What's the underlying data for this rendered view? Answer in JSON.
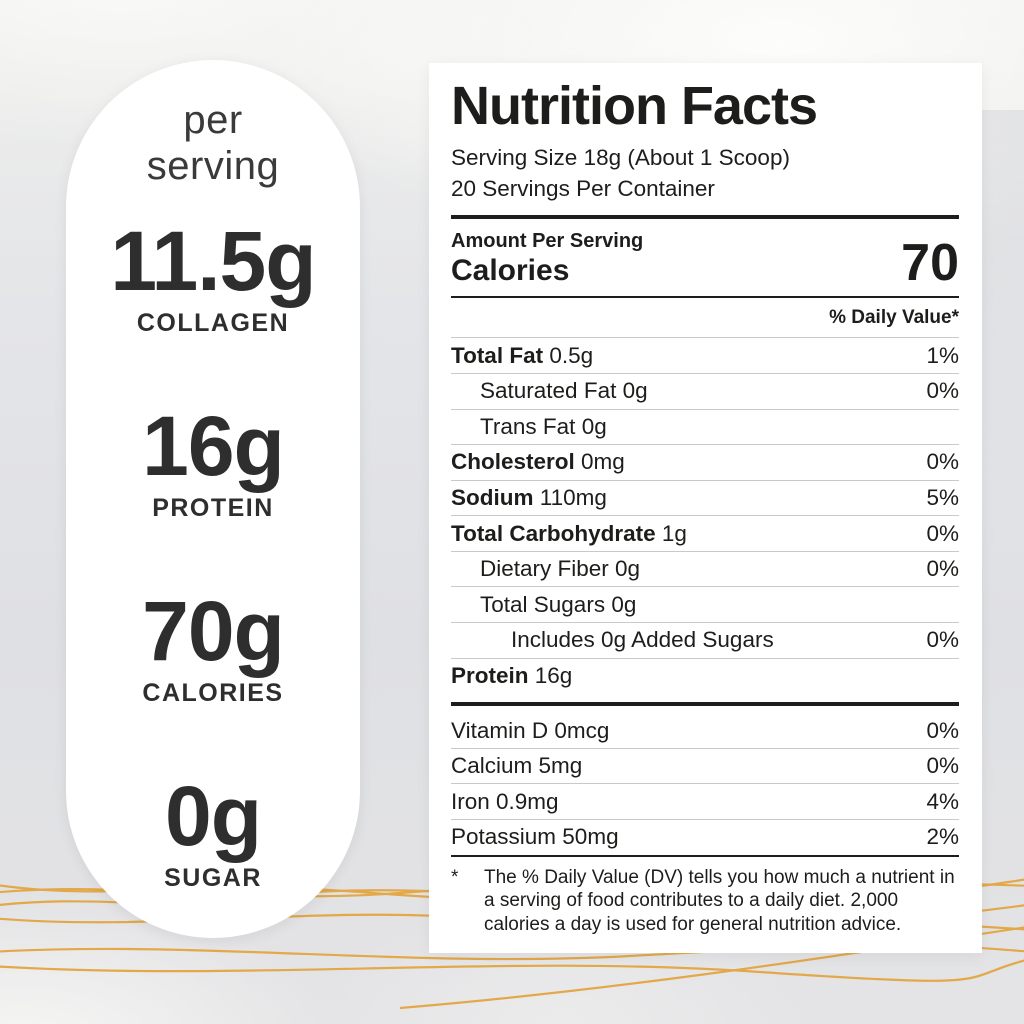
{
  "colors": {
    "accent_gold": "#E2A33C",
    "panel_white": "#FFFFFF",
    "text_dark": "#1D1D1B",
    "background_gray": "#E3E4E6",
    "separator_gray": "#C9C9C9"
  },
  "per_serving_panel": {
    "heading": "per serving",
    "stats": [
      {
        "value": "11.5g",
        "label": "COLLAGEN"
      },
      {
        "value": "16g",
        "label": "PROTEIN"
      },
      {
        "value": "70g",
        "label": "CALORIES"
      },
      {
        "value": "0g",
        "label": "SUGAR"
      }
    ]
  },
  "nutrition_facts": {
    "title": "Nutrition Facts",
    "serving_size": "Serving Size 18g (About 1 Scoop)",
    "servings_per_container": "20 Servings Per Container",
    "amount_per_serving_label": "Amount Per Serving",
    "calories_label": "Calories",
    "calories_value": "70",
    "daily_value_header": "% Daily Value*",
    "nutrient_rows": [
      {
        "name": "Total Fat",
        "amount": "0.5g",
        "dv": "1%",
        "bold": true,
        "indent": 0
      },
      {
        "name": "Saturated Fat",
        "amount": "0g",
        "dv": "0%",
        "bold": false,
        "indent": 1
      },
      {
        "name": "Trans Fat",
        "amount": "0g",
        "dv": "",
        "bold": false,
        "indent": 1
      },
      {
        "name": "Cholesterol",
        "amount": "0mg",
        "dv": "0%",
        "bold": true,
        "indent": 0
      },
      {
        "name": "Sodium",
        "amount": "110mg",
        "dv": "5%",
        "bold": true,
        "indent": 0
      },
      {
        "name": "Total Carbohydrate",
        "amount": "1g",
        "dv": "0%",
        "bold": true,
        "indent": 0
      },
      {
        "name": "Dietary Fiber",
        "amount": "0g",
        "dv": "0%",
        "bold": false,
        "indent": 1
      },
      {
        "name": "Total Sugars",
        "amount": "0g",
        "dv": "",
        "bold": false,
        "indent": 1
      },
      {
        "name": "Includes 0g Added Sugars",
        "amount": "",
        "dv": "0%",
        "bold": false,
        "indent": 2
      },
      {
        "name": "Protein",
        "amount": "16g",
        "dv": "",
        "bold": true,
        "indent": 0
      }
    ],
    "micronutrient_rows": [
      {
        "name": "Vitamin D",
        "amount": "0mcg",
        "dv": "0%"
      },
      {
        "name": "Calcium",
        "amount": "5mg",
        "dv": "0%"
      },
      {
        "name": "Iron",
        "amount": "0.9mg",
        "dv": "4%"
      },
      {
        "name": "Potassium",
        "amount": "50mg",
        "dv": "2%"
      }
    ],
    "footnote_marker": "*",
    "footnote": "The % Daily Value (DV) tells you how much a nutrient in a serving of food contributes to a daily diet. 2,000 calories a day is used for general nutrition advice."
  }
}
